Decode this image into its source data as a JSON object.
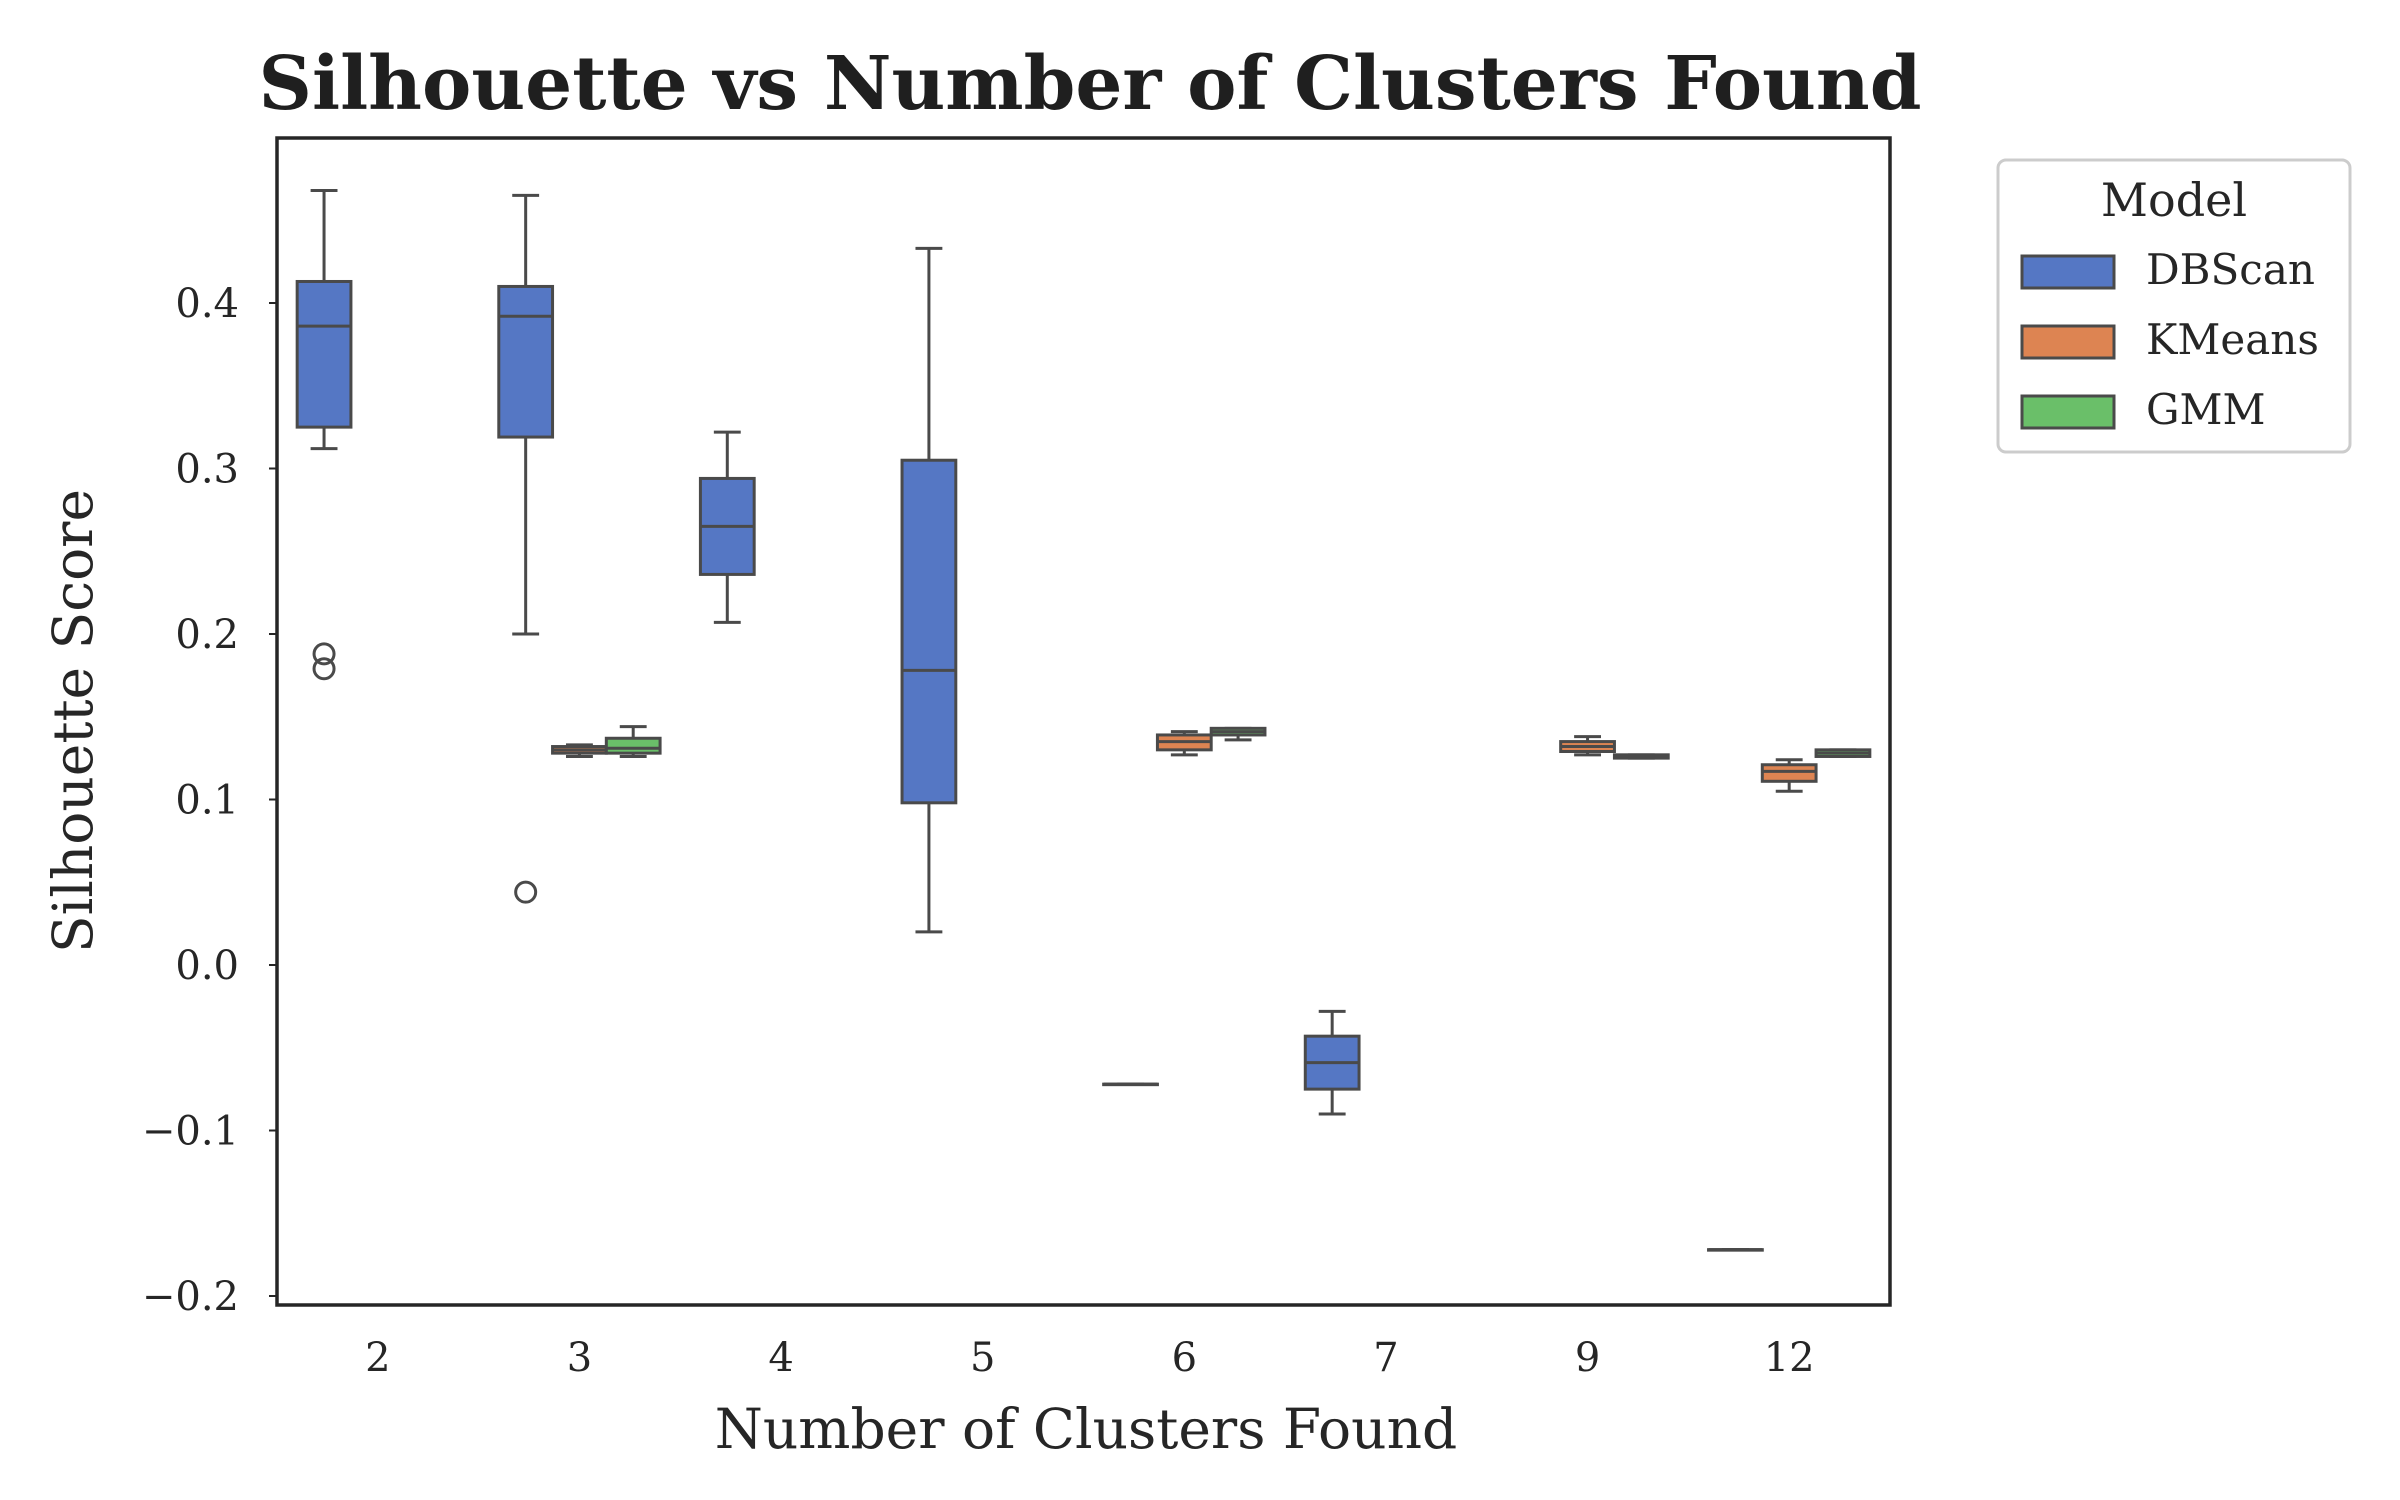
{
  "chart_data": {
    "type": "boxplot",
    "title": "Silhouette vs Number of Clusters Found",
    "xlabel": "Number of Clusters Found",
    "ylabel": "Silhouette Score",
    "categories": [
      "2",
      "3",
      "4",
      "5",
      "6",
      "7",
      "9",
      "12"
    ],
    "ylim": [
      -0.205,
      0.5
    ],
    "yticks": [
      -0.2,
      -0.1,
      0.0,
      0.1,
      0.2,
      0.3,
      0.4
    ],
    "ytick_labels": [
      "−0.2",
      "−0.1",
      "0.0",
      "0.1",
      "0.2",
      "0.3",
      "0.4"
    ],
    "grid": false,
    "legend": {
      "title": "Model",
      "placement": "outside-top-right"
    },
    "series": [
      {
        "name": "DBScan",
        "color": "#5577c4",
        "boxes": [
          {
            "category": "2",
            "whislo": 0.312,
            "q1": 0.325,
            "med": 0.386,
            "q3": 0.413,
            "whishi": 0.468,
            "fliers": [
              0.188,
              0.179
            ]
          },
          {
            "category": "3",
            "whislo": 0.2,
            "q1": 0.319,
            "med": 0.392,
            "q3": 0.41,
            "whishi": 0.465,
            "fliers": [
              0.044
            ]
          },
          {
            "category": "4",
            "whislo": 0.207,
            "q1": 0.236,
            "med": 0.265,
            "q3": 0.294,
            "whishi": 0.322,
            "fliers": []
          },
          {
            "category": "5",
            "whislo": 0.02,
            "q1": 0.098,
            "med": 0.178,
            "q3": 0.305,
            "whishi": 0.433,
            "fliers": []
          },
          {
            "category": "6",
            "whislo": -0.072,
            "q1": -0.072,
            "med": -0.072,
            "q3": -0.072,
            "whishi": -0.072,
            "fliers": []
          },
          {
            "category": "7",
            "whislo": -0.09,
            "q1": -0.075,
            "med": -0.059,
            "q3": -0.043,
            "whishi": -0.028,
            "fliers": []
          },
          {
            "category": "12",
            "whislo": -0.172,
            "q1": -0.172,
            "med": -0.172,
            "q3": -0.172,
            "whishi": -0.172,
            "fliers": []
          }
        ]
      },
      {
        "name": "KMeans",
        "color": "#dd8452",
        "boxes": [
          {
            "category": "3",
            "whislo": 0.126,
            "q1": 0.128,
            "med": 0.13,
            "q3": 0.132,
            "whishi": 0.133,
            "fliers": []
          },
          {
            "category": "6",
            "whislo": 0.127,
            "q1": 0.13,
            "med": 0.135,
            "q3": 0.139,
            "whishi": 0.141,
            "fliers": []
          },
          {
            "category": "9",
            "whislo": 0.127,
            "q1": 0.129,
            "med": 0.132,
            "q3": 0.135,
            "whishi": 0.138,
            "fliers": []
          },
          {
            "category": "12",
            "whislo": 0.105,
            "q1": 0.111,
            "med": 0.117,
            "q3": 0.121,
            "whishi": 0.124,
            "fliers": []
          }
        ]
      },
      {
        "name": "GMM",
        "color": "#6abf69",
        "boxes": [
          {
            "category": "3",
            "whislo": 0.126,
            "q1": 0.128,
            "med": 0.131,
            "q3": 0.137,
            "whishi": 0.144,
            "fliers": []
          },
          {
            "category": "6",
            "whislo": 0.136,
            "q1": 0.139,
            "med": 0.141,
            "q3": 0.143,
            "whishi": 0.143,
            "fliers": []
          },
          {
            "category": "9",
            "whislo": 0.125,
            "q1": 0.125,
            "med": 0.126,
            "q3": 0.127,
            "whishi": 0.127,
            "fliers": []
          },
          {
            "category": "12",
            "whislo": 0.126,
            "q1": 0.126,
            "med": 0.128,
            "q3": 0.13,
            "whishi": 0.13,
            "fliers": []
          }
        ]
      }
    ]
  }
}
